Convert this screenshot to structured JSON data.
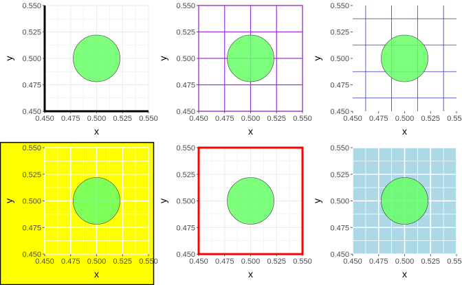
{
  "chart_data": [
    {
      "type": "scatter",
      "panel": "top-left",
      "xlabel": "x",
      "ylabel": "y",
      "xlim": [
        0.45,
        0.55
      ],
      "ylim": [
        0.45,
        0.55
      ],
      "xticks": [
        "0.450",
        "0.475",
        "0.500",
        "0.525",
        "0.550"
      ],
      "yticks": [
        "0.450",
        "0.475",
        "0.500",
        "0.525",
        "0.550"
      ],
      "points": [
        {
          "x": 0.5,
          "y": 0.5,
          "size": "large",
          "color": "#66ff66"
        }
      ],
      "style": {
        "background": "#ffffff",
        "plot_background": "#ffffff",
        "grid": "light",
        "grid_color": "#ebebeb",
        "axis_lines": "left-bottom",
        "axis_line_color": "#000000",
        "border": "none"
      }
    },
    {
      "type": "scatter",
      "panel": "top-middle",
      "xlabel": "x",
      "ylabel": "y",
      "xlim": [
        0.45,
        0.55
      ],
      "ylim": [
        0.45,
        0.55
      ],
      "xticks": [
        "0.450",
        "0.475",
        "0.500",
        "0.525",
        "0.550"
      ],
      "yticks": [
        "0.450",
        "0.475",
        "0.500",
        "0.525",
        "0.550"
      ],
      "points": [
        {
          "x": 0.5,
          "y": 0.5,
          "size": "large",
          "color": "#66ff66"
        }
      ],
      "style": {
        "background": "#ffffff",
        "plot_background": "#ffffff",
        "grid": "major",
        "grid_color": "#9b30d9",
        "axis_lines": "none",
        "border": "#9b30d9"
      }
    },
    {
      "type": "scatter",
      "panel": "top-right",
      "xlabel": "x",
      "ylabel": "y",
      "xlim": [
        0.45,
        0.55
      ],
      "ylim": [
        0.45,
        0.55
      ],
      "xticks": [
        "0.450",
        "0.475",
        "0.500",
        "0.525",
        "0.550"
      ],
      "yticks": [
        "0.450",
        "0.475",
        "0.500",
        "0.525",
        "0.550"
      ],
      "points": [
        {
          "x": 0.5,
          "y": 0.5,
          "size": "large",
          "color": "#66ff66"
        }
      ],
      "style": {
        "background": "#ffffff",
        "plot_background": "#ffffff",
        "grid": "minor",
        "grid_color": "#3333cc",
        "axis_lines": "none",
        "border": "none"
      }
    },
    {
      "type": "scatter",
      "panel": "bottom-left",
      "xlabel": "x",
      "ylabel": "y",
      "xlim": [
        0.45,
        0.55
      ],
      "ylim": [
        0.45,
        0.55
      ],
      "xticks": [
        "0.450",
        "0.475",
        "0.500",
        "0.525",
        "0.550"
      ],
      "yticks": [
        "0.450",
        "0.475",
        "0.500",
        "0.525",
        "0.550"
      ],
      "points": [
        {
          "x": 0.5,
          "y": 0.5,
          "size": "large",
          "color": "#66ff66"
        }
      ],
      "style": {
        "background": "#ffff00",
        "plot_background": "#ffff00",
        "grid": "light",
        "grid_color": "#ffffff",
        "axis_lines": "none",
        "border": "#000000"
      }
    },
    {
      "type": "scatter",
      "panel": "bottom-middle",
      "xlabel": "x",
      "ylabel": "y",
      "xlim": [
        0.45,
        0.55
      ],
      "ylim": [
        0.45,
        0.55
      ],
      "xticks": [
        "0.450",
        "0.475",
        "0.500",
        "0.525",
        "0.550"
      ],
      "yticks": [
        "0.450",
        "0.475",
        "0.500",
        "0.525",
        "0.550"
      ],
      "points": [
        {
          "x": 0.5,
          "y": 0.5,
          "size": "large",
          "color": "#66ff66"
        }
      ],
      "style": {
        "background": "#ffffff",
        "plot_background": "#ffffff",
        "grid": "light",
        "grid_color": "#ebebeb",
        "axis_lines": "none",
        "border": "#ff0000"
      }
    },
    {
      "type": "scatter",
      "panel": "bottom-right",
      "xlabel": "x",
      "ylabel": "y",
      "xlim": [
        0.45,
        0.55
      ],
      "ylim": [
        0.45,
        0.55
      ],
      "xticks": [
        "0.450",
        "0.475",
        "0.500",
        "0.525",
        "0.550"
      ],
      "yticks": [
        "0.450",
        "0.475",
        "0.500",
        "0.525",
        "0.550"
      ],
      "points": [
        {
          "x": 0.5,
          "y": 0.5,
          "size": "large",
          "color": "#66ff66"
        }
      ],
      "style": {
        "background": "#ffffff",
        "plot_background": "#add8e6",
        "grid": "light",
        "grid_color": "#ffffff",
        "axis_lines": "none",
        "border": "none"
      }
    }
  ]
}
